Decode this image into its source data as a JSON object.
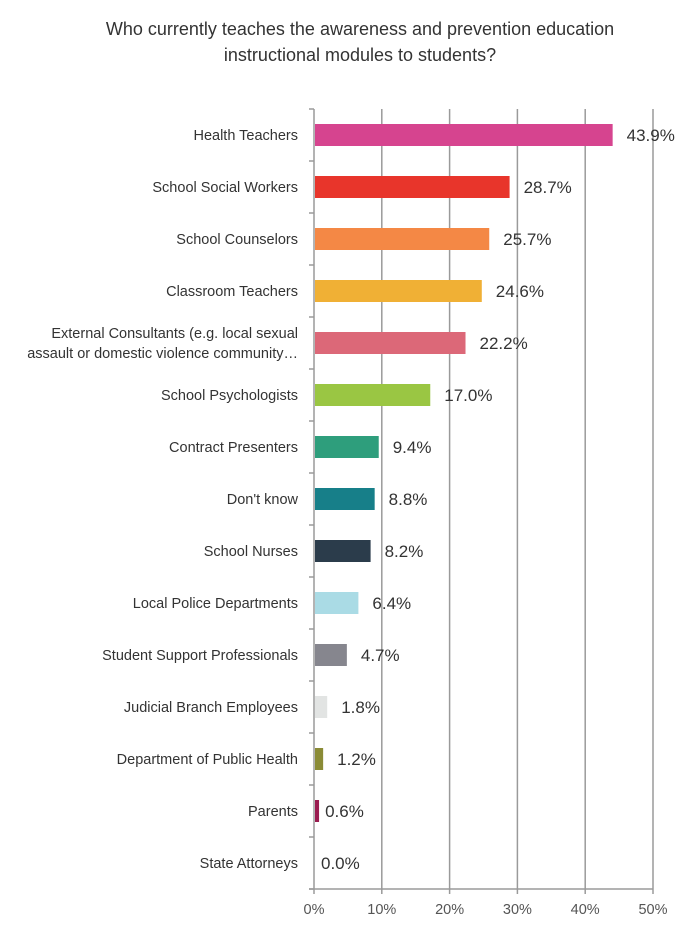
{
  "chart_data": {
    "type": "bar",
    "orientation": "horizontal",
    "title": "Who currently teaches the awareness and prevention education instructional modules to students?",
    "categories": [
      "Health Teachers",
      "School Social Workers",
      "School Counselors",
      "Classroom Teachers",
      "External Consultants (e.g. local sexual assault or domestic violence community…",
      "School Psychologists",
      "Contract Presenters",
      "Don't know",
      "School Nurses",
      "Local Police Departments",
      "Student Support Professionals",
      "Judicial Branch Employees",
      "Department of Public Health",
      "Parents",
      "State Attorneys"
    ],
    "values": [
      43.9,
      28.7,
      25.7,
      24.6,
      22.2,
      17.0,
      9.4,
      8.8,
      8.2,
      6.4,
      4.7,
      1.8,
      1.2,
      0.6,
      0.0
    ],
    "data_labels": [
      "43.9%",
      "28.7%",
      "25.7%",
      "24.6%",
      "22.2%",
      "17.0%",
      "9.4%",
      "8.8%",
      "8.2%",
      "6.4%",
      "4.7%",
      "1.8%",
      "1.2%",
      "0.6%",
      "0.0%"
    ],
    "colors": [
      "#d6448f",
      "#e8352b",
      "#f48845",
      "#f0b035",
      "#dc6878",
      "#9ac643",
      "#2e9e7c",
      "#177f89",
      "#2b3c4b",
      "#aadbe5",
      "#86868e",
      "#e2e4e3",
      "#8a8b36",
      "#9a1b4f",
      "#cccccc"
    ],
    "xlabel": "",
    "ylabel": "",
    "xlim": [
      0,
      50
    ],
    "x_ticks": [
      "0%",
      "10%",
      "20%",
      "30%",
      "40%",
      "50%"
    ],
    "grid": true,
    "legend": "none"
  }
}
